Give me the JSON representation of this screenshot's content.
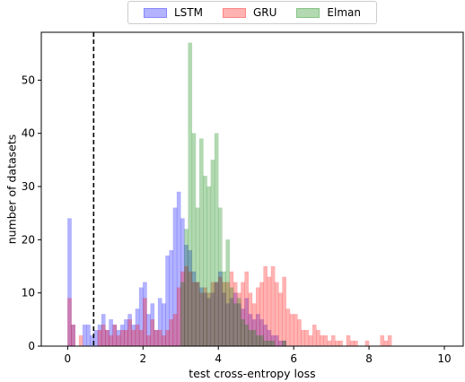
{
  "chart_data": {
    "type": "histogram",
    "xlabel": "test cross-entropy loss",
    "ylabel": "number of datasets",
    "xlim": [
      -0.7,
      10.5
    ],
    "ylim": [
      0,
      59
    ],
    "xticks": [
      0,
      2,
      4,
      6,
      8,
      10
    ],
    "yticks": [
      0,
      10,
      20,
      30,
      40,
      50
    ],
    "bin_width": 0.1,
    "reference_line": {
      "x": 0.69,
      "style": "dashed",
      "color": "#000000"
    },
    "legend_position": "top-center",
    "series": [
      {
        "name": "LSTM",
        "color": "#0000ff",
        "alpha": 0.3,
        "bin_starts": [
          0.0,
          0.1,
          0.2,
          0.3,
          0.4,
          0.5,
          0.6,
          0.7,
          0.8,
          0.9,
          1.0,
          1.1,
          1.2,
          1.3,
          1.4,
          1.5,
          1.6,
          1.7,
          1.8,
          1.9,
          2.0,
          2.1,
          2.2,
          2.3,
          2.4,
          2.5,
          2.6,
          2.7,
          2.8,
          2.9,
          3.0,
          3.1,
          3.2,
          3.3,
          3.4,
          3.5,
          3.6,
          3.7,
          3.8,
          3.9,
          4.0,
          4.1,
          4.2,
          4.3,
          4.4,
          4.5,
          4.6,
          4.7,
          4.8,
          4.9,
          5.0,
          5.1,
          5.2,
          5.3,
          5.4,
          5.5,
          5.6,
          5.7
        ],
        "counts": [
          24,
          4,
          0,
          0,
          4,
          4,
          2,
          3,
          4,
          6,
          3,
          5,
          4,
          3,
          4,
          5,
          6,
          4,
          7,
          11,
          12,
          6,
          8,
          3,
          9,
          8,
          17,
          18,
          26,
          29,
          24,
          19,
          18,
          14,
          12,
          11,
          10,
          9,
          10,
          12,
          14,
          10,
          8,
          9,
          10,
          8,
          7,
          9,
          6,
          5,
          6,
          5,
          4,
          3,
          2,
          2,
          1,
          1
        ]
      },
      {
        "name": "GRU",
        "color": "#ff0000",
        "alpha": 0.3,
        "bin_starts": [
          0.0,
          0.1,
          0.2,
          0.3,
          0.4,
          0.5,
          0.6,
          0.7,
          0.8,
          0.9,
          1.0,
          1.1,
          1.2,
          1.3,
          1.4,
          1.5,
          1.6,
          1.7,
          1.8,
          1.9,
          2.0,
          2.1,
          2.2,
          2.3,
          2.4,
          2.5,
          2.6,
          2.7,
          2.8,
          2.9,
          3.0,
          3.1,
          3.2,
          3.3,
          3.4,
          3.5,
          3.6,
          3.7,
          3.8,
          3.9,
          4.0,
          4.1,
          4.2,
          4.3,
          4.4,
          4.5,
          4.6,
          4.7,
          4.8,
          4.9,
          5.0,
          5.1,
          5.2,
          5.3,
          5.4,
          5.5,
          5.6,
          5.7,
          5.8,
          5.9,
          6.0,
          6.1,
          6.2,
          6.3,
          6.4,
          6.5,
          6.6,
          6.7,
          6.8,
          6.9,
          7.0,
          7.1,
          7.2,
          7.3,
          7.4,
          7.5,
          7.6,
          7.7,
          7.8,
          7.9,
          8.0,
          8.1,
          8.2,
          8.3,
          8.4,
          8.5
        ],
        "counts": [
          9,
          4,
          0,
          2,
          0,
          0,
          0,
          0,
          3,
          4,
          3,
          2,
          4,
          2,
          3,
          3,
          5,
          3,
          4,
          3,
          9,
          2,
          5,
          3,
          3,
          2,
          3,
          5,
          6,
          11,
          14,
          15,
          14,
          12,
          12,
          10,
          11,
          10,
          12,
          12,
          13,
          12,
          12,
          14,
          12,
          10,
          12,
          14,
          10,
          8,
          11,
          12,
          15,
          13,
          15,
          12,
          10,
          13,
          7,
          6,
          6,
          5,
          3,
          3,
          2,
          4,
          3,
          2,
          2,
          1,
          2,
          1,
          1,
          0,
          2,
          1,
          1,
          0,
          0,
          1,
          0,
          0,
          0,
          2,
          1,
          2
        ]
      },
      {
        "name": "Elman",
        "color": "#008000",
        "alpha": 0.3,
        "bin_starts": [
          3.0,
          3.1,
          3.2,
          3.3,
          3.4,
          3.5,
          3.6,
          3.7,
          3.8,
          3.9,
          4.0,
          4.1,
          4.2,
          4.3,
          4.4,
          4.5,
          4.6,
          4.7,
          4.8,
          4.9,
          5.0,
          5.1,
          5.2,
          5.3,
          5.4,
          5.5,
          5.6,
          5.7,
          5.8
        ],
        "counts": [
          12,
          22,
          57,
          40,
          26,
          39,
          32,
          30,
          35,
          40,
          26,
          14,
          20,
          11,
          8,
          9,
          5,
          4,
          3,
          3,
          2,
          2,
          1,
          1,
          1,
          0,
          0,
          1,
          0
        ]
      }
    ]
  }
}
